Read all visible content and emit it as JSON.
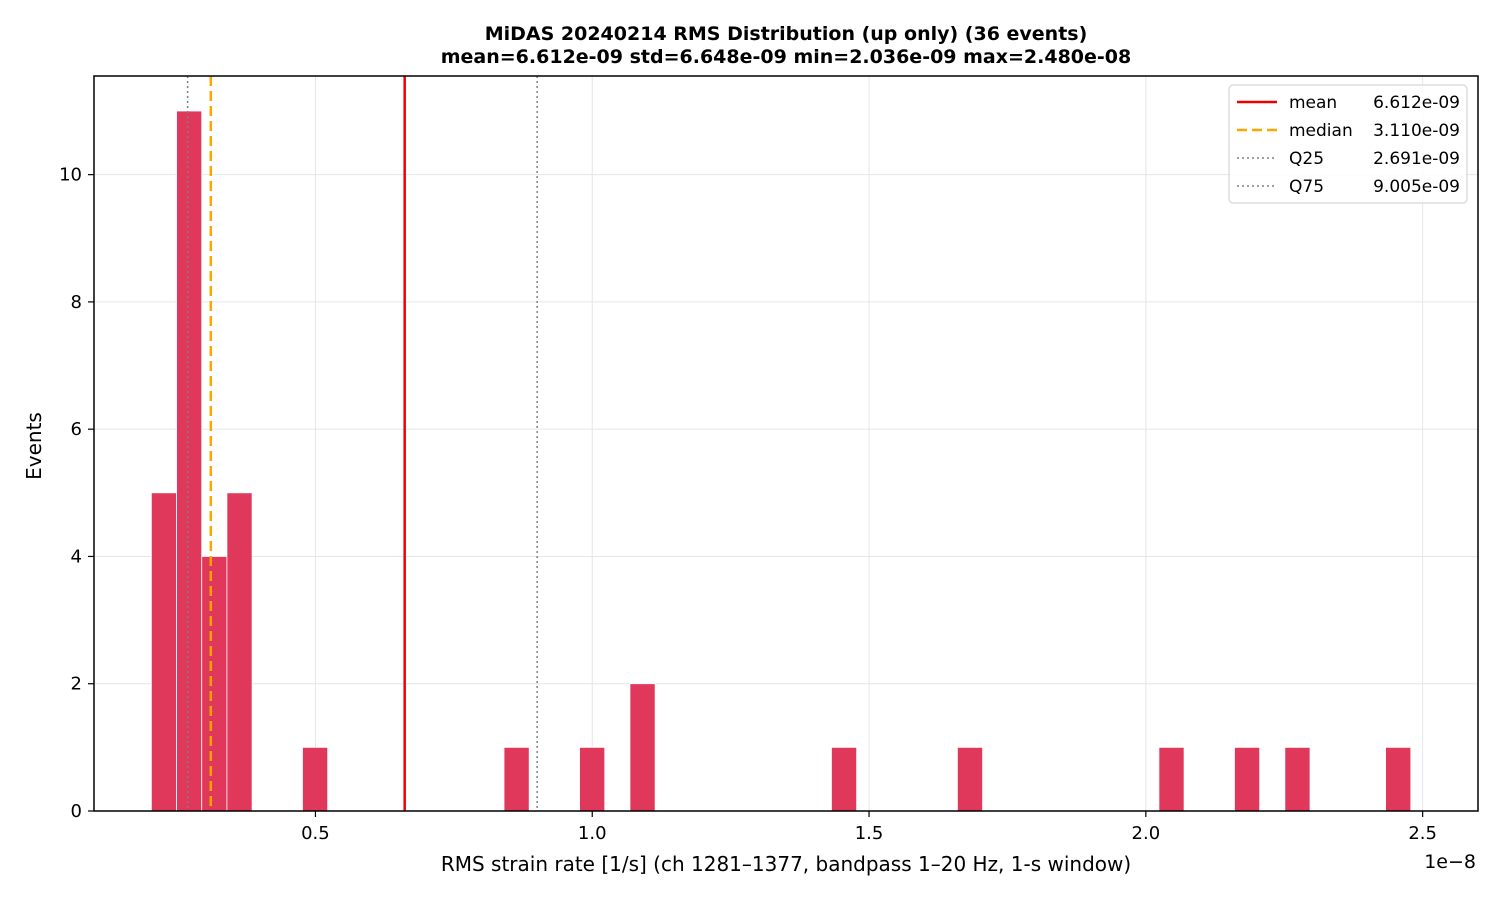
{
  "chart_data": {
    "type": "bar",
    "title": "MiDAS 20240214  RMS Distribution  (up only)  (36 events)",
    "subtitle": "mean=6.612e-09  std=6.648e-09  min=2.036e-09  max=2.480e-08",
    "xlabel": "RMS strain rate [1/s]  (ch 1281–1377, bandpass 1–20 Hz, 1-s window)",
    "ylabel": "Events",
    "x_offset_label": "1e−8",
    "xlim": [
      0.1,
      2.6
    ],
    "ylim": [
      0,
      11.55
    ],
    "grid": true,
    "legend_position": "top-right",
    "bar_color": "#e0385a",
    "bin_width": 0.0455,
    "x_ticks": [
      {
        "value": 0.5,
        "label": "0.5"
      },
      {
        "value": 1.0,
        "label": "1.0"
      },
      {
        "value": 1.5,
        "label": "1.5"
      },
      {
        "value": 2.0,
        "label": "2.0"
      },
      {
        "value": 2.5,
        "label": "2.5"
      }
    ],
    "y_ticks": [
      {
        "value": 0,
        "label": "0"
      },
      {
        "value": 2,
        "label": "2"
      },
      {
        "value": 4,
        "label": "4"
      },
      {
        "value": 6,
        "label": "6"
      },
      {
        "value": 8,
        "label": "8"
      },
      {
        "value": 10,
        "label": "10"
      }
    ],
    "bins": [
      {
        "x0": 0.2036,
        "count": 5
      },
      {
        "x0": 0.2491,
        "count": 11
      },
      {
        "x0": 0.2946,
        "count": 4
      },
      {
        "x0": 0.3401,
        "count": 5
      },
      {
        "x0": 0.4766,
        "count": 1
      },
      {
        "x0": 0.8406,
        "count": 1
      },
      {
        "x0": 0.9771,
        "count": 1
      },
      {
        "x0": 1.0681,
        "count": 2
      },
      {
        "x0": 1.4321,
        "count": 1
      },
      {
        "x0": 1.6596,
        "count": 1
      },
      {
        "x0": 2.0236,
        "count": 1
      },
      {
        "x0": 2.1601,
        "count": 1
      },
      {
        "x0": 2.2511,
        "count": 1
      },
      {
        "x0": 2.4331,
        "count": 1
      }
    ],
    "reference_lines": [
      {
        "key": "mean",
        "value": 0.6612,
        "color": "#ee0000",
        "style": "solid",
        "width": 2.5
      },
      {
        "key": "median",
        "value": 0.311,
        "color": "#ffa500",
        "style": "dashed",
        "width": 2.5
      },
      {
        "key": "q25",
        "value": 0.2691,
        "color": "#808080",
        "style": "dotted",
        "width": 1.5
      },
      {
        "key": "q75",
        "value": 0.9005,
        "color": "#808080",
        "style": "dotted",
        "width": 1.5
      }
    ],
    "legend": [
      {
        "key": "mean",
        "name": "mean",
        "value": "6.612e-09",
        "color": "#ee0000",
        "style": "solid"
      },
      {
        "key": "median",
        "name": "median",
        "value": "3.110e-09",
        "color": "#ffa500",
        "style": "dashed"
      },
      {
        "key": "q25",
        "name": "Q25",
        "value": "2.691e-09",
        "color": "#808080",
        "style": "dotted"
      },
      {
        "key": "q75",
        "name": "Q75",
        "value": "9.005e-09",
        "color": "#808080",
        "style": "dotted"
      }
    ]
  }
}
